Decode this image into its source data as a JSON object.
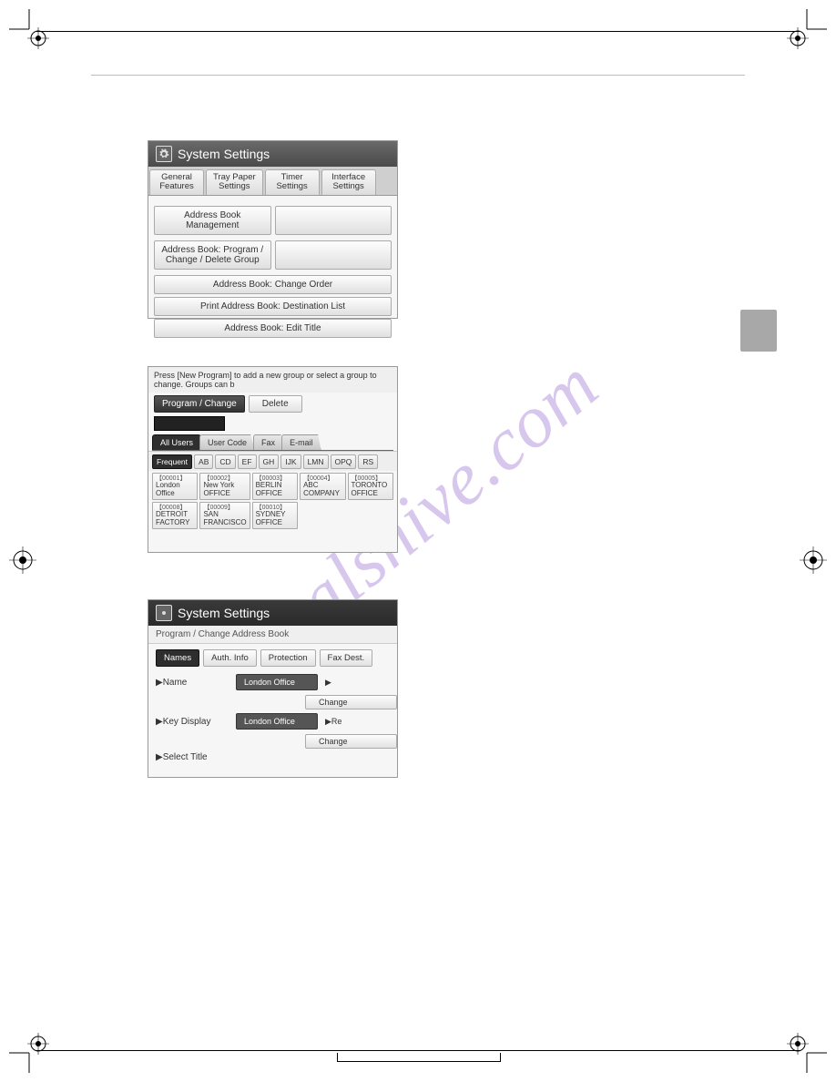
{
  "watermark": "manualshive.com",
  "panel1": {
    "title": "System Settings",
    "tabs": [
      "General\nFeatures",
      "Tray Paper\nSettings",
      "Timer\nSettings",
      "Interface\nSettings"
    ],
    "items": [
      "Address Book Management",
      "Address Book: Program / Change / Delete Group",
      "Address Book: Change Order",
      "Print Address Book: Destination List",
      "Address Book: Edit Title"
    ]
  },
  "panel2": {
    "instruction": "Press [New Program] to add a new group or select a group to change. Groups can b",
    "program_change": "Program / Change",
    "delete": "Delete",
    "filter_tabs": [
      "All Users",
      "User Code",
      "Fax",
      "E-mail"
    ],
    "header_tabs": [
      "Frequent",
      "AB",
      "CD",
      "EF",
      "GH",
      "IJK",
      "LMN",
      "OPQ",
      "RS"
    ],
    "cards": [
      {
        "id": "【00001】",
        "t": "London Office"
      },
      {
        "id": "【00002】",
        "t": "New York OFFICE"
      },
      {
        "id": "【00003】",
        "t": "BERLIN OFFICE"
      },
      {
        "id": "【00004】",
        "t": "ABC COMPANY"
      },
      {
        "id": "【00005】",
        "t": "TORONTO OFFICE"
      },
      {
        "id": "【00008】",
        "t": "DETROIT FACTORY"
      },
      {
        "id": "【00009】",
        "t": "SAN FRANCISCO"
      },
      {
        "id": "【00010】",
        "t": "SYDNEY OFFICE"
      }
    ]
  },
  "panel3": {
    "title": "System Settings",
    "subhead": "Program / Change Address Book",
    "cats": [
      "Names",
      "Auth. Info",
      "Protection",
      "Fax Dest."
    ],
    "rows": {
      "name_label": "▶Name",
      "name_value": "London Office",
      "change": "Change",
      "key_label": "▶Key Display",
      "key_value": "London Office",
      "sel_label": "▶Select Title",
      "re": "▶Re"
    }
  }
}
